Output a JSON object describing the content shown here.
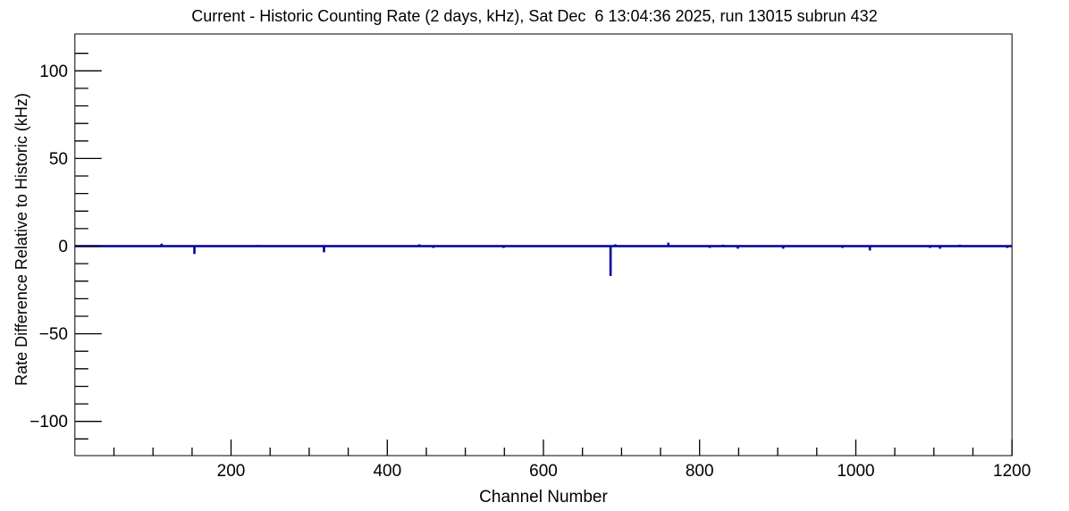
{
  "window": {
    "background": "#ffffff"
  },
  "title": "Current - Historic Counting Rate (2 days, kHz), Sat Dec  6 13:04:36 2025, run 13015 subrun 432",
  "chart_data": {
    "type": "line",
    "subtype": "histogram-step",
    "title": "Current - Historic Counting Rate (2 days, kHz), Sat Dec  6 13:04:36 2025, run 13015 subrun 432",
    "xlabel": "Channel Number",
    "ylabel": "Rate Difference Relative to Historic (kHz)",
    "xlim": [
      0,
      1200
    ],
    "ylim": [
      -121,
      121
    ],
    "grid": false,
    "legend": null,
    "line_color": "#000099",
    "axis_color": "#000000",
    "x_major_ticks": [
      200,
      400,
      600,
      800,
      1000,
      1200
    ],
    "x_tick_labels": [
      "200",
      "400",
      "600",
      "800",
      "1000",
      "1200"
    ],
    "x_minor_step": 50,
    "y_major_ticks": [
      -100,
      -50,
      0,
      50,
      100
    ],
    "y_tick_labels": [
      "−100",
      "−50",
      "0",
      "50",
      "100"
    ],
    "y_minor_step": 10,
    "baseline_value": 0,
    "spikes_note": "single-bin deviations from the 0 kHz baseline: [channel, value_kHz]",
    "spikes": [
      [
        111,
        1.4
      ],
      [
        153,
        -4.5
      ],
      [
        235,
        0.7
      ],
      [
        319,
        -3.5
      ],
      [
        441,
        1.0
      ],
      [
        459,
        -1.0
      ],
      [
        549,
        -1.0
      ],
      [
        686,
        -17.0
      ],
      [
        692,
        1.0
      ],
      [
        760,
        2.0
      ],
      [
        813,
        -1.0
      ],
      [
        830,
        0.8
      ],
      [
        849,
        -1.5
      ],
      [
        907,
        -1.5
      ],
      [
        983,
        -1.0
      ],
      [
        1018,
        -2.5
      ],
      [
        1095,
        -1.0
      ],
      [
        1108,
        -1.5
      ],
      [
        1133,
        0.8
      ],
      [
        1194,
        -1.0
      ]
    ]
  }
}
